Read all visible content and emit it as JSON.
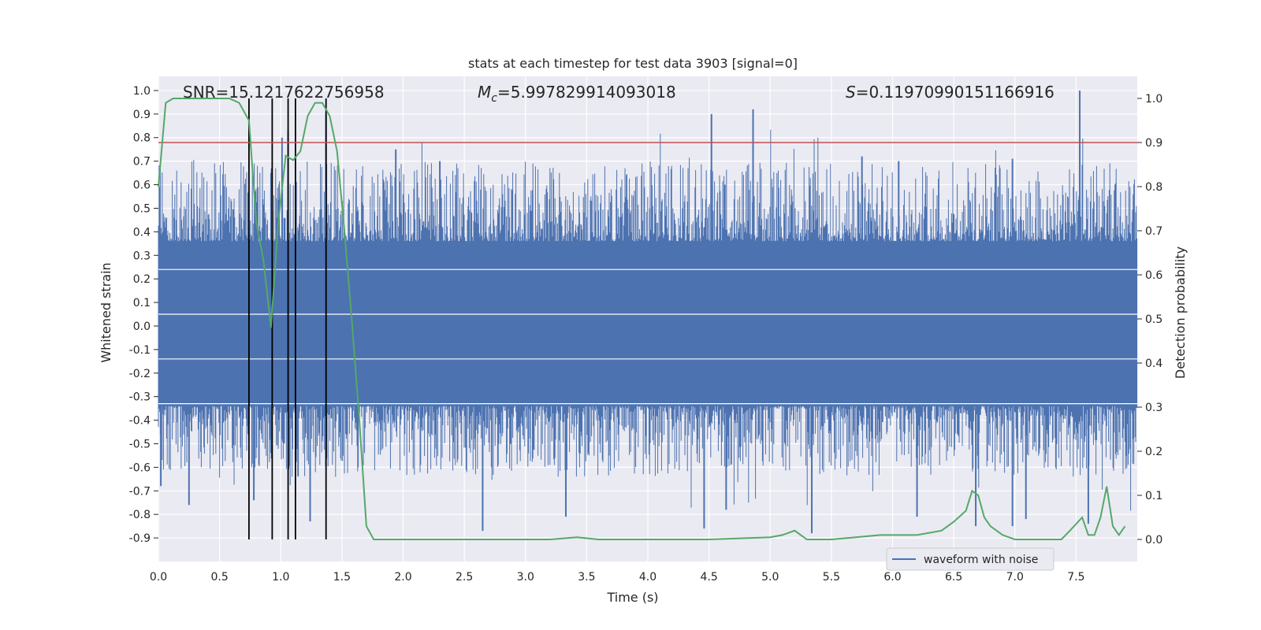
{
  "chart_data": {
    "type": "line",
    "title": "stats at each timestep for test data 3903 [signal=0]",
    "xlabel": "Time (s)",
    "ylabel": "Whitened strain",
    "y2label": "Detection probability",
    "xlim": [
      0.0,
      8.0
    ],
    "ylim": [
      -1.0,
      1.06
    ],
    "y2lim": [
      -0.05,
      1.05
    ],
    "xticks": [
      "0.0",
      "0.5",
      "1.0",
      "1.5",
      "2.0",
      "2.5",
      "3.0",
      "3.5",
      "4.0",
      "4.5",
      "5.0",
      "5.5",
      "6.0",
      "6.5",
      "7.0",
      "7.5"
    ],
    "yticks": [
      "1.0",
      "0.9",
      "0.8",
      "0.7",
      "0.6",
      "0.5",
      "0.4",
      "0.3",
      "0.2",
      "0.1",
      "0.0",
      "-0.1",
      "-0.2",
      "-0.3",
      "-0.4",
      "-0.5",
      "-0.6",
      "-0.7",
      "-0.8",
      "-0.9"
    ],
    "y2ticks": [
      "1.0",
      "0.9",
      "0.8",
      "0.7",
      "0.6",
      "0.5",
      "0.4",
      "0.3",
      "0.2",
      "0.1",
      "0.0"
    ],
    "annotations": {
      "snr": "SNR=15.1217622756958",
      "mc_symbol": "M",
      "mc_sub": "c",
      "mc_value": "=5.997829914093018",
      "s_symbol": "S",
      "s_value": "=0.11970990151166916"
    },
    "threshold": 0.9,
    "vlines": [
      0.74,
      0.93,
      1.06,
      1.12,
      1.37
    ],
    "waveform": {
      "name": "waveform with noise",
      "color": "#4c72b0",
      "band": [
        -0.34,
        0.36
      ],
      "spikes": [
        {
          "x": 4.52,
          "y": 0.9
        },
        {
          "x": 4.86,
          "y": 0.92
        },
        {
          "x": 7.53,
          "y": 1.0
        },
        {
          "x": 1.01,
          "y": 0.8
        },
        {
          "x": 1.06,
          "y": 0.83
        },
        {
          "x": 1.37,
          "y": 0.9
        },
        {
          "x": 1.94,
          "y": 0.75
        },
        {
          "x": 2.3,
          "y": 0.7
        },
        {
          "x": 5.75,
          "y": 0.72
        },
        {
          "x": 6.98,
          "y": 0.71
        },
        {
          "x": 6.05,
          "y": 0.7
        },
        {
          "x": 0.25,
          "y": -0.76
        },
        {
          "x": 1.24,
          "y": -0.83
        },
        {
          "x": 2.65,
          "y": -0.87
        },
        {
          "x": 3.33,
          "y": -0.81
        },
        {
          "x": 4.46,
          "y": -0.86
        },
        {
          "x": 4.64,
          "y": -0.78
        },
        {
          "x": 5.34,
          "y": -0.88
        },
        {
          "x": 6.68,
          "y": -0.85
        },
        {
          "x": 6.98,
          "y": -0.85
        },
        {
          "x": 7.09,
          "y": -0.82
        },
        {
          "x": 7.6,
          "y": -0.84
        },
        {
          "x": 0.02,
          "y": -0.68
        },
        {
          "x": 0.78,
          "y": -0.74
        },
        {
          "x": 6.2,
          "y": -0.81
        }
      ]
    },
    "probability": {
      "color": "#55a868",
      "x": [
        0.0,
        0.06,
        0.12,
        0.2,
        0.3,
        0.4,
        0.5,
        0.58,
        0.66,
        0.74,
        0.8,
        0.86,
        0.92,
        0.98,
        1.04,
        1.1,
        1.16,
        1.22,
        1.28,
        1.34,
        1.4,
        1.46,
        1.52,
        1.58,
        1.64,
        1.7,
        1.76,
        1.85,
        2.0,
        2.5,
        2.8,
        3.2,
        3.42,
        3.6,
        4.0,
        4.5,
        5.0,
        5.1,
        5.2,
        5.3,
        5.5,
        5.7,
        5.9,
        6.0,
        6.2,
        6.4,
        6.5,
        6.6,
        6.65,
        6.7,
        6.75,
        6.8,
        6.9,
        7.0,
        7.2,
        7.38,
        7.45,
        7.55,
        7.6,
        7.65,
        7.7,
        7.75,
        7.8,
        7.85,
        7.9
      ],
      "y": [
        0.8,
        0.99,
        1.0,
        1.0,
        1.0,
        1.0,
        1.0,
        1.0,
        0.99,
        0.95,
        0.72,
        0.63,
        0.48,
        0.72,
        0.87,
        0.86,
        0.88,
        0.96,
        0.99,
        0.99,
        0.96,
        0.88,
        0.7,
        0.5,
        0.28,
        0.03,
        0.0,
        0.0,
        0.0,
        0.0,
        0.0,
        0.0,
        0.005,
        0.0,
        0.0,
        0.0,
        0.005,
        0.01,
        0.02,
        0.0,
        0.0,
        0.005,
        0.01,
        0.01,
        0.01,
        0.02,
        0.04,
        0.065,
        0.11,
        0.1,
        0.05,
        0.03,
        0.01,
        0.0,
        0.0,
        0.0,
        0.02,
        0.05,
        0.01,
        0.01,
        0.05,
        0.12,
        0.03,
        0.01,
        0.03
      ]
    },
    "legend_position": "lower-right"
  }
}
